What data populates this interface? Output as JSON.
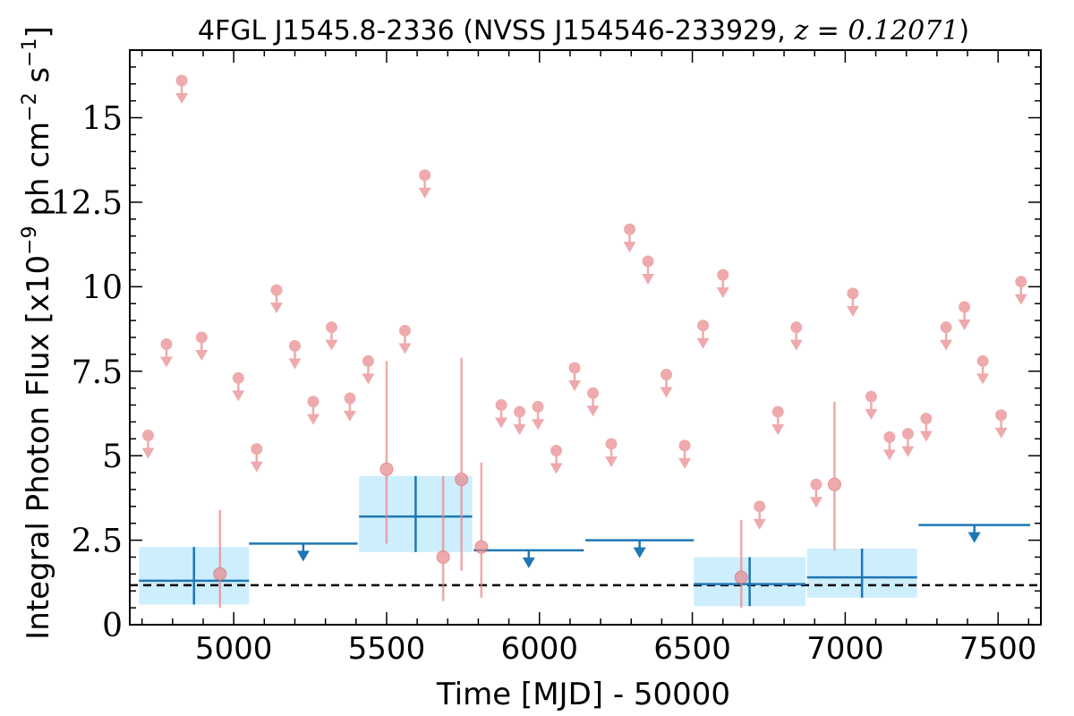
{
  "chart_data": {
    "type": "scatter",
    "title_parts": {
      "prefix": "4FGL J1545.8-2336 (NVSS J154546-233929, ",
      "var": "z",
      "eq": " = ",
      "value": "0.12071",
      "suffix": ")"
    },
    "xlabel": "Time [MJD] - 50000",
    "ylabel": {
      "pre": "Integral Photon Flux [x10",
      "exp1": "−9",
      "mid": " ph cm",
      "exp2": "−2",
      "mid2": " s",
      "exp3": "−1",
      "post": "]"
    },
    "xlim": [
      4660,
      7640
    ],
    "ylim": [
      0,
      17
    ],
    "xticks": [
      5000,
      5500,
      6000,
      6500,
      7000,
      7500
    ],
    "xtick_labels": [
      "5000",
      "5500",
      "6000",
      "6500",
      "7000",
      "7500"
    ],
    "yticks": [
      0,
      2.5,
      5,
      7.5,
      10,
      12.5,
      15
    ],
    "ytick_labels": [
      "0",
      "2.5",
      "5",
      "7.5",
      "10",
      "12.5",
      "15"
    ],
    "average_flux": 1.17,
    "colors": {
      "short_bins": "#e8878a",
      "long_bins": "#1f77b4",
      "long_band": "#cdeefd",
      "average": "#000000"
    },
    "short_detections": [
      {
        "x": 4955,
        "y": 1.5,
        "ylo": 0.5,
        "yhi": 3.4
      },
      {
        "x": 5500,
        "y": 4.6,
        "ylo": 2.4,
        "yhi": 7.8
      },
      {
        "x": 5685,
        "y": 2.0,
        "ylo": 0.7,
        "yhi": 4.4
      },
      {
        "x": 5745,
        "y": 4.3,
        "ylo": 1.6,
        "yhi": 7.9
      },
      {
        "x": 5810,
        "y": 2.3,
        "ylo": 0.8,
        "yhi": 4.8
      },
      {
        "x": 6660,
        "y": 1.4,
        "ylo": 0.5,
        "yhi": 3.1
      },
      {
        "x": 6965,
        "y": 4.15,
        "ylo": 2.2,
        "yhi": 6.6
      }
    ],
    "short_upper_limits": [
      {
        "x": 4720,
        "y": 5.6
      },
      {
        "x": 4780,
        "y": 8.3
      },
      {
        "x": 4830,
        "y": 16.1
      },
      {
        "x": 4895,
        "y": 8.5
      },
      {
        "x": 5015,
        "y": 7.3
      },
      {
        "x": 5075,
        "y": 5.2
      },
      {
        "x": 5140,
        "y": 9.9
      },
      {
        "x": 5200,
        "y": 8.25
      },
      {
        "x": 5260,
        "y": 6.6
      },
      {
        "x": 5320,
        "y": 8.8
      },
      {
        "x": 5380,
        "y": 6.7
      },
      {
        "x": 5440,
        "y": 7.8
      },
      {
        "x": 5560,
        "y": 8.7
      },
      {
        "x": 5625,
        "y": 13.3
      },
      {
        "x": 5875,
        "y": 6.5
      },
      {
        "x": 5935,
        "y": 6.3
      },
      {
        "x": 5995,
        "y": 6.45
      },
      {
        "x": 6055,
        "y": 5.15
      },
      {
        "x": 6115,
        "y": 7.6
      },
      {
        "x": 6175,
        "y": 6.85
      },
      {
        "x": 6235,
        "y": 5.35
      },
      {
        "x": 6295,
        "y": 11.7
      },
      {
        "x": 6355,
        "y": 10.75
      },
      {
        "x": 6415,
        "y": 7.4
      },
      {
        "x": 6475,
        "y": 5.3
      },
      {
        "x": 6535,
        "y": 8.85
      },
      {
        "x": 6600,
        "y": 10.35
      },
      {
        "x": 6780,
        "y": 6.3
      },
      {
        "x": 6840,
        "y": 8.8
      },
      {
        "x": 6905,
        "y": 4.15
      },
      {
        "x": 7025,
        "y": 9.8
      },
      {
        "x": 7085,
        "y": 6.75
      },
      {
        "x": 7145,
        "y": 5.55
      },
      {
        "x": 7205,
        "y": 5.65
      },
      {
        "x": 7265,
        "y": 6.1
      },
      {
        "x": 7330,
        "y": 8.8
      },
      {
        "x": 7390,
        "y": 9.4
      },
      {
        "x": 7450,
        "y": 7.8
      },
      {
        "x": 7510,
        "y": 6.2
      },
      {
        "x": 7575,
        "y": 10.15
      },
      {
        "x": 6720,
        "y": 3.5
      }
    ],
    "long_detections": [
      {
        "x0": 4690,
        "x1": 5050,
        "y": 1.3,
        "ylo": 0.6,
        "yhi": 2.3
      },
      {
        "x0": 5410,
        "x1": 5780,
        "y": 3.2,
        "ylo": 2.15,
        "yhi": 4.4
      },
      {
        "x0": 6505,
        "x1": 6870,
        "y": 1.2,
        "ylo": 0.55,
        "yhi": 2.0
      },
      {
        "x0": 6875,
        "x1": 7235,
        "y": 1.4,
        "ylo": 0.8,
        "yhi": 2.25
      }
    ],
    "long_upper_limits": [
      {
        "x0": 5050,
        "x1": 5405,
        "y": 2.4
      },
      {
        "x0": 5785,
        "x1": 6145,
        "y": 2.2
      },
      {
        "x0": 6150,
        "x1": 6505,
        "y": 2.5
      },
      {
        "x0": 7240,
        "x1": 7605,
        "y": 2.95
      }
    ]
  }
}
